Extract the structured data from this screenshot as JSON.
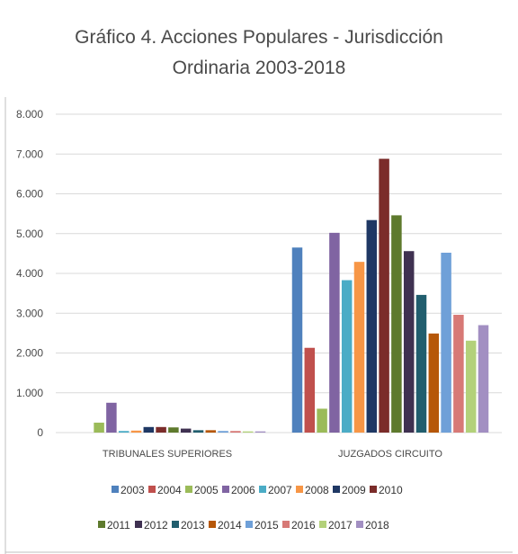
{
  "chart_data": {
    "type": "bar",
    "title_lines": [
      "Gráfico 4. Acciones Populares - Jurisdicción",
      "Ordinaria 2003-2018"
    ],
    "categories": [
      "TRIBUNALES SUPERIORES",
      "JUZGADOS CIRCUITO"
    ],
    "ylim": [
      0,
      8000
    ],
    "yticks": [
      0,
      1000,
      2000,
      3000,
      4000,
      5000,
      6000,
      7000,
      8000
    ],
    "ytick_labels": [
      "0",
      "1.000",
      "2.000",
      "3.000",
      "4.000",
      "5.000",
      "6.000",
      "7.000",
      "8.000"
    ],
    "grid": true,
    "legend_position": "bottom",
    "series": [
      {
        "name": "2003",
        "color": "#4f81bd",
        "values": [
          0,
          4650
        ]
      },
      {
        "name": "2004",
        "color": "#c0504d",
        "values": [
          0,
          2130
        ]
      },
      {
        "name": "2005",
        "color": "#9bbb59",
        "values": [
          250,
          600
        ]
      },
      {
        "name": "2006",
        "color": "#8064a2",
        "values": [
          750,
          5020
        ]
      },
      {
        "name": "2007",
        "color": "#4bacc6",
        "values": [
          40,
          3830
        ]
      },
      {
        "name": "2008",
        "color": "#f79646",
        "values": [
          50,
          4290
        ]
      },
      {
        "name": "2009",
        "color": "#1f3864",
        "values": [
          140,
          5340
        ]
      },
      {
        "name": "2010",
        "color": "#7b2c2a",
        "values": [
          140,
          6880
        ]
      },
      {
        "name": "2011",
        "color": "#5e7a2d",
        "values": [
          130,
          5460
        ]
      },
      {
        "name": "2012",
        "color": "#3f3151",
        "values": [
          100,
          4560
        ]
      },
      {
        "name": "2013",
        "color": "#215e6e",
        "values": [
          60,
          3460
        ]
      },
      {
        "name": "2014",
        "color": "#b65708",
        "values": [
          60,
          2490
        ]
      },
      {
        "name": "2015",
        "color": "#6fa0d8",
        "values": [
          40,
          4520
        ]
      },
      {
        "name": "2016",
        "color": "#d77976",
        "values": [
          40,
          2960
        ]
      },
      {
        "name": "2017",
        "color": "#b3d17a",
        "values": [
          30,
          2310
        ]
      },
      {
        "name": "2018",
        "color": "#a28fc2",
        "values": [
          30,
          2700
        ]
      }
    ]
  }
}
